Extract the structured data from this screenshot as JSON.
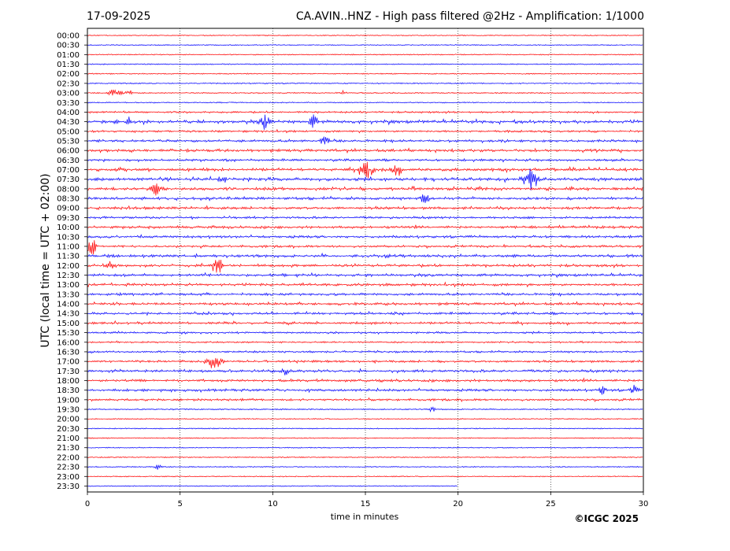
{
  "header": {
    "date": "17-09-2025",
    "title": "CA.AVIN..HNZ - High pass filtered @2Hz - Amplification: 1/1000"
  },
  "footer": {
    "copyright": "©ICGC 2025"
  },
  "colors": {
    "trace_a": "#ff0000",
    "trace_b": "#0000ff",
    "axis": "#000000",
    "grid": "#000000"
  },
  "chart_data": {
    "type": "line",
    "title": "CA.AVIN..HNZ - High pass filtered @2Hz - Amplification: 1/1000",
    "xlabel": "time in minutes",
    "ylabel": "UTC (local time = UTC + 02:00)",
    "xlim": [
      0,
      30
    ],
    "x_ticks": [
      "0",
      "5",
      "10",
      "15",
      "20",
      "25",
      "30"
    ],
    "x_tick_values": [
      0,
      5,
      10,
      15,
      20,
      25,
      30
    ],
    "vertical_gridlines_at_minutes": [
      5,
      10,
      15,
      20,
      25
    ],
    "grid": "vertical dotted",
    "rows": [
      {
        "label": "00:00",
        "color": "red",
        "activity": 0.02,
        "end_minute": 30
      },
      {
        "label": "00:30",
        "color": "blue",
        "activity": 0.02,
        "end_minute": 30
      },
      {
        "label": "01:00",
        "color": "red",
        "activity": 0.03,
        "end_minute": 30
      },
      {
        "label": "01:30",
        "color": "blue",
        "activity": 0.04,
        "end_minute": 30
      },
      {
        "label": "02:00",
        "color": "red",
        "activity": 0.04,
        "end_minute": 30
      },
      {
        "label": "02:30",
        "color": "blue",
        "activity": 0.08,
        "end_minute": 30
      },
      {
        "label": "03:00",
        "color": "red",
        "activity": 0.07,
        "end_minute": 30
      },
      {
        "label": "03:30",
        "color": "blue",
        "activity": 0.05,
        "end_minute": 30
      },
      {
        "label": "04:00",
        "color": "red",
        "activity": 0.25,
        "end_minute": 30
      },
      {
        "label": "04:30",
        "color": "blue",
        "activity": 0.6,
        "end_minute": 30
      },
      {
        "label": "05:00",
        "color": "red",
        "activity": 0.3,
        "end_minute": 30
      },
      {
        "label": "05:30",
        "color": "blue",
        "activity": 0.4,
        "end_minute": 30
      },
      {
        "label": "06:00",
        "color": "red",
        "activity": 0.45,
        "end_minute": 30
      },
      {
        "label": "06:30",
        "color": "blue",
        "activity": 0.35,
        "end_minute": 30
      },
      {
        "label": "07:00",
        "color": "red",
        "activity": 0.55,
        "end_minute": 30
      },
      {
        "label": "07:30",
        "color": "blue",
        "activity": 0.6,
        "end_minute": 30
      },
      {
        "label": "08:00",
        "color": "red",
        "activity": 0.55,
        "end_minute": 30
      },
      {
        "label": "08:30",
        "color": "blue",
        "activity": 0.45,
        "end_minute": 30
      },
      {
        "label": "09:00",
        "color": "red",
        "activity": 0.45,
        "end_minute": 30
      },
      {
        "label": "09:30",
        "color": "blue",
        "activity": 0.35,
        "end_minute": 30
      },
      {
        "label": "10:00",
        "color": "red",
        "activity": 0.4,
        "end_minute": 30
      },
      {
        "label": "10:30",
        "color": "blue",
        "activity": 0.4,
        "end_minute": 30
      },
      {
        "label": "11:00",
        "color": "red",
        "activity": 0.35,
        "end_minute": 30
      },
      {
        "label": "11:30",
        "color": "blue",
        "activity": 0.5,
        "end_minute": 30
      },
      {
        "label": "12:00",
        "color": "red",
        "activity": 0.45,
        "end_minute": 30
      },
      {
        "label": "12:30",
        "color": "blue",
        "activity": 0.45,
        "end_minute": 30
      },
      {
        "label": "13:00",
        "color": "red",
        "activity": 0.45,
        "end_minute": 30
      },
      {
        "label": "13:30",
        "color": "blue",
        "activity": 0.4,
        "end_minute": 30
      },
      {
        "label": "14:00",
        "color": "red",
        "activity": 0.4,
        "end_minute": 30
      },
      {
        "label": "14:30",
        "color": "blue",
        "activity": 0.4,
        "end_minute": 30
      },
      {
        "label": "15:00",
        "color": "red",
        "activity": 0.4,
        "end_minute": 30
      },
      {
        "label": "15:30",
        "color": "blue",
        "activity": 0.25,
        "end_minute": 30
      },
      {
        "label": "16:00",
        "color": "red",
        "activity": 0.2,
        "end_minute": 30
      },
      {
        "label": "16:30",
        "color": "blue",
        "activity": 0.25,
        "end_minute": 30
      },
      {
        "label": "17:00",
        "color": "red",
        "activity": 0.35,
        "end_minute": 30
      },
      {
        "label": "17:30",
        "color": "blue",
        "activity": 0.45,
        "end_minute": 30
      },
      {
        "label": "18:00",
        "color": "red",
        "activity": 0.4,
        "end_minute": 30
      },
      {
        "label": "18:30",
        "color": "blue",
        "activity": 0.4,
        "end_minute": 30
      },
      {
        "label": "19:00",
        "color": "red",
        "activity": 0.35,
        "end_minute": 30
      },
      {
        "label": "19:30",
        "color": "blue",
        "activity": 0.08,
        "end_minute": 30
      },
      {
        "label": "20:00",
        "color": "red",
        "activity": 0.04,
        "end_minute": 30
      },
      {
        "label": "20:30",
        "color": "blue",
        "activity": 0.03,
        "end_minute": 30
      },
      {
        "label": "21:00",
        "color": "red",
        "activity": 0.03,
        "end_minute": 30
      },
      {
        "label": "21:30",
        "color": "blue",
        "activity": 0.03,
        "end_minute": 30
      },
      {
        "label": "22:00",
        "color": "red",
        "activity": 0.03,
        "end_minute": 30
      },
      {
        "label": "22:30",
        "color": "blue",
        "activity": 0.03,
        "end_minute": 30
      },
      {
        "label": "23:00",
        "color": "red",
        "activity": 0.02,
        "end_minute": 30
      },
      {
        "label": "23:30",
        "color": "blue",
        "activity": 0.02,
        "end_minute": 20
      }
    ],
    "events": [
      {
        "row": 6,
        "minute": 1.5,
        "amp": 0.4,
        "dur": 0.5
      },
      {
        "row": 6,
        "minute": 2.3,
        "amp": 0.3,
        "dur": 0.3
      },
      {
        "row": 6,
        "minute": 13.8,
        "amp": 0.3,
        "dur": 0.2
      },
      {
        "row": 9,
        "minute": 2.1,
        "amp": 0.5,
        "dur": 0.3
      },
      {
        "row": 9,
        "minute": 9.6,
        "amp": 0.7,
        "dur": 0.4
      },
      {
        "row": 9,
        "minute": 12.2,
        "amp": 0.6,
        "dur": 0.3
      },
      {
        "row": 11,
        "minute": 12.8,
        "amp": 0.5,
        "dur": 0.3
      },
      {
        "row": 14,
        "minute": 15.0,
        "amp": 1.0,
        "dur": 0.6
      },
      {
        "row": 14,
        "minute": 16.7,
        "amp": 0.5,
        "dur": 0.4
      },
      {
        "row": 15,
        "minute": 23.9,
        "amp": 1.0,
        "dur": 0.6
      },
      {
        "row": 15,
        "minute": 7.3,
        "amp": 0.4,
        "dur": 0.3
      },
      {
        "row": 16,
        "minute": 3.7,
        "amp": 0.5,
        "dur": 0.5
      },
      {
        "row": 17,
        "minute": 18.2,
        "amp": 0.4,
        "dur": 0.4
      },
      {
        "row": 22,
        "minute": 0.2,
        "amp": 1.0,
        "dur": 0.4
      },
      {
        "row": 24,
        "minute": 7.0,
        "amp": 0.9,
        "dur": 0.4
      },
      {
        "row": 24,
        "minute": 1.2,
        "amp": 0.4,
        "dur": 0.4
      },
      {
        "row": 34,
        "minute": 6.8,
        "amp": 0.8,
        "dur": 0.6
      },
      {
        "row": 35,
        "minute": 10.7,
        "amp": 0.4,
        "dur": 0.3
      },
      {
        "row": 37,
        "minute": 27.8,
        "amp": 0.4,
        "dur": 0.3
      },
      {
        "row": 37,
        "minute": 29.5,
        "amp": 0.4,
        "dur": 0.3
      },
      {
        "row": 39,
        "minute": 18.6,
        "amp": 0.3,
        "dur": 0.2
      },
      {
        "row": 45,
        "minute": 3.8,
        "amp": 0.25,
        "dur": 0.3
      }
    ]
  }
}
